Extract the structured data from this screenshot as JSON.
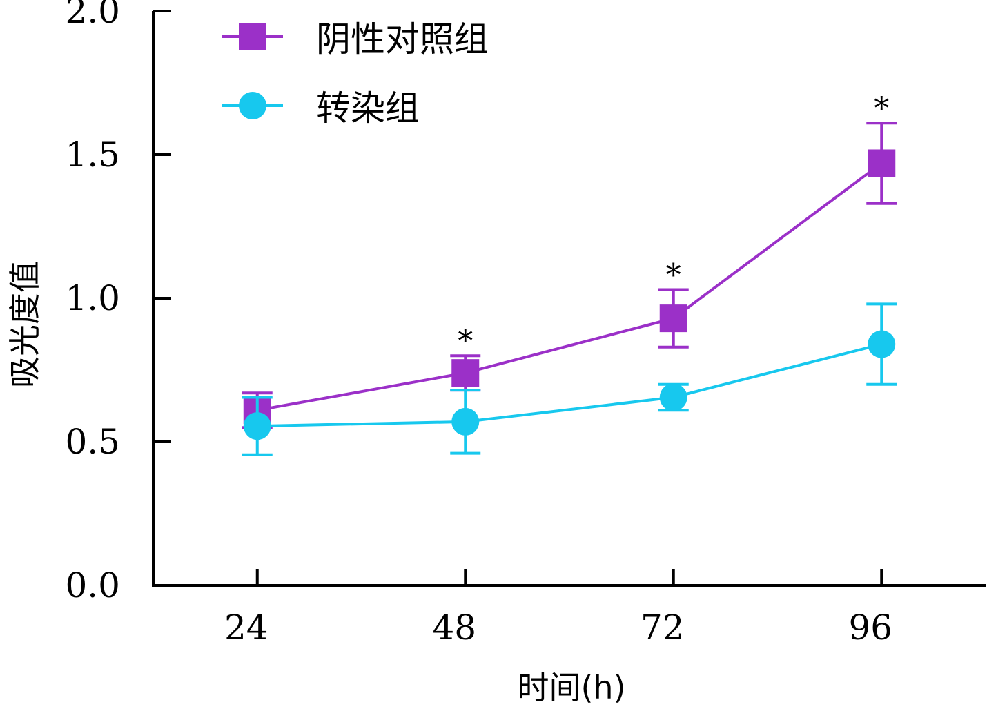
{
  "chart_data": {
    "type": "line",
    "title": "",
    "xlabel": "时间(h)",
    "ylabel": "吸光度值",
    "x": [
      24,
      48,
      72,
      96
    ],
    "x_tick_labels": [
      "24",
      "48",
      "72",
      "96"
    ],
    "xlim": [
      12,
      108
    ],
    "ylim": [
      0,
      2.0
    ],
    "y_tick_labels": [
      "0.0",
      "0.5",
      "1.0",
      "1.5",
      "2.0"
    ],
    "y_ticks": [
      0.0,
      0.5,
      1.0,
      1.5,
      2.0
    ],
    "grid": false,
    "legend_position": "top-left",
    "series": [
      {
        "name": "阴性对照组",
        "marker": "square",
        "color": "#9b30c8",
        "values": [
          0.61,
          0.74,
          0.93,
          1.47
        ],
        "error": [
          0.06,
          0.06,
          0.1,
          0.14
        ],
        "significance": [
          "",
          "*",
          "*",
          "*"
        ]
      },
      {
        "name": "转染组",
        "marker": "circle",
        "color": "#17c8ee",
        "values": [
          0.555,
          0.57,
          0.655,
          0.84
        ],
        "error": [
          0.1,
          0.11,
          0.045,
          0.14
        ],
        "significance": [
          "",
          "",
          "",
          ""
        ]
      }
    ]
  }
}
